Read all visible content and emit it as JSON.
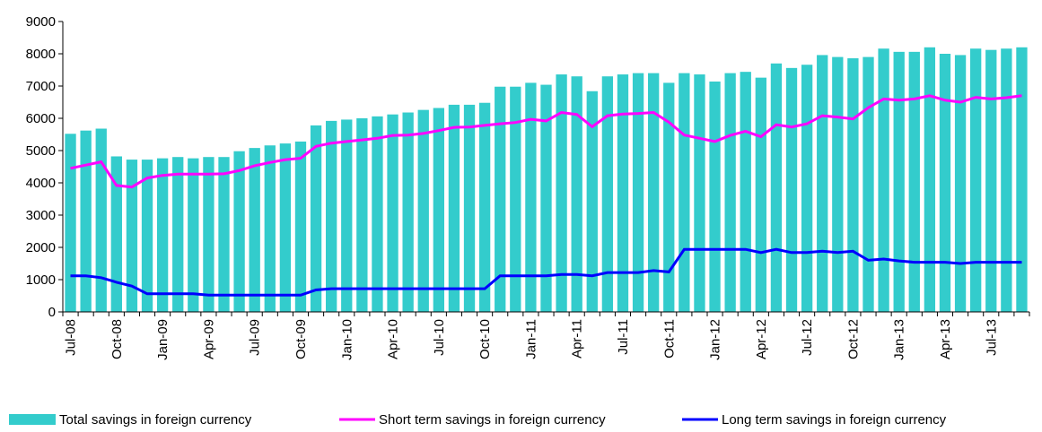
{
  "chart_data": {
    "type": "bar-line",
    "categories": [
      "Jul-08",
      null,
      null,
      "Oct-08",
      null,
      null,
      "Jan-09",
      null,
      null,
      "Apr-09",
      null,
      null,
      "Jul-09",
      null,
      null,
      "Oct-09",
      null,
      null,
      "Jan-10",
      null,
      null,
      "Apr-10",
      null,
      null,
      "Jul-10",
      null,
      null,
      "Oct-10",
      null,
      null,
      "Jan-11",
      null,
      null,
      "Apr-11",
      null,
      null,
      "Jul-11",
      null,
      null,
      "Oct-11",
      null,
      null,
      "Jan-12",
      null,
      null,
      "Apr-12",
      null,
      null,
      "Jul-12",
      null,
      null,
      "Oct-12",
      null,
      null,
      "Jan-13",
      null,
      null,
      "Apr-13",
      null,
      null,
      "Jul-13",
      null,
      null
    ],
    "series": [
      {
        "name": "Total savings in foreign currency",
        "kind": "bar",
        "color": "#33cccc",
        "values": [
          5520,
          5620,
          5680,
          4820,
          4720,
          4720,
          4760,
          4800,
          4760,
          4800,
          4800,
          4980,
          5080,
          5160,
          5220,
          5280,
          5780,
          5920,
          5960,
          6000,
          6060,
          6120,
          6180,
          6260,
          6320,
          6420,
          6420,
          6480,
          6980,
          6980,
          7100,
          7040,
          7360,
          7300,
          6840,
          7300,
          7360,
          7400,
          7400,
          7100,
          7400,
          7360,
          7140,
          7400,
          7440,
          7260,
          7700,
          7560,
          7660,
          7960,
          7900,
          7860,
          7900,
          8160,
          8060,
          8060,
          8200,
          8000,
          7960,
          8160,
          8120,
          8160,
          8200
        ]
      },
      {
        "name": "Short term savings in foreign currency",
        "kind": "line",
        "color": "#ff00ff",
        "values": [
          4450,
          4550,
          4650,
          3920,
          3870,
          4150,
          4230,
          4270,
          4270,
          4270,
          4280,
          4380,
          4530,
          4630,
          4720,
          4760,
          5130,
          5230,
          5280,
          5330,
          5380,
          5470,
          5480,
          5530,
          5620,
          5720,
          5730,
          5780,
          5830,
          5870,
          5970,
          5920,
          6180,
          6120,
          5740,
          6080,
          6130,
          6150,
          6180,
          5880,
          5480,
          5380,
          5280,
          5470,
          5600,
          5430,
          5800,
          5730,
          5830,
          6080,
          6040,
          5980,
          6330,
          6600,
          6560,
          6600,
          6700,
          6560,
          6500,
          6650,
          6600,
          6640,
          6700
        ]
      },
      {
        "name": "Long term savings in foreign currency",
        "kind": "line",
        "color": "#0000ff",
        "values": [
          1120,
          1120,
          1060,
          920,
          800,
          560,
          560,
          560,
          560,
          520,
          520,
          520,
          520,
          520,
          520,
          520,
          680,
          720,
          720,
          720,
          720,
          720,
          720,
          720,
          720,
          720,
          720,
          720,
          1120,
          1120,
          1120,
          1120,
          1160,
          1160,
          1120,
          1220,
          1220,
          1220,
          1280,
          1240,
          1940,
          1940,
          1940,
          1940,
          1940,
          1840,
          1940,
          1840,
          1840,
          1880,
          1840,
          1880,
          1600,
          1640,
          1580,
          1540,
          1540,
          1540,
          1500,
          1540,
          1540,
          1540,
          1540
        ]
      }
    ],
    "ylim": [
      0,
      9000
    ],
    "yticks": [
      0,
      1000,
      2000,
      3000,
      4000,
      5000,
      6000,
      7000,
      8000,
      9000
    ],
    "grid": false,
    "legend": "bottom"
  }
}
